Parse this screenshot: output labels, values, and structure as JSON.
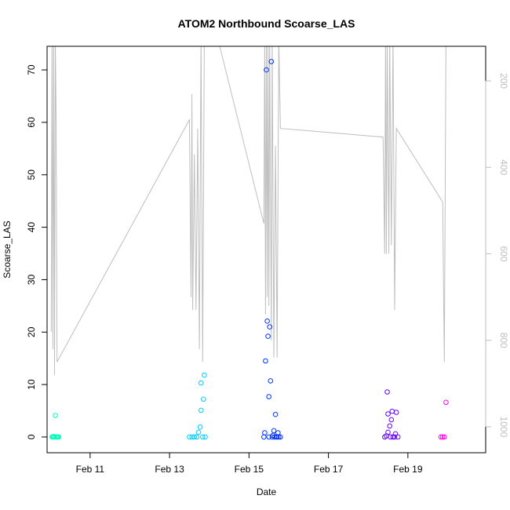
{
  "chart_data": {
    "type": "scatter",
    "title": "ATOM2 Northbound Scoarse_LAS",
    "xlabel": "Date",
    "ylabel": "Scoarse_LAS",
    "xlim": [
      "2024-02-09T22:00",
      "2024-02-20T23:00"
    ],
    "ylim": [
      -3,
      74.5
    ],
    "x_ticks": [
      {
        "date": "2024-02-11",
        "label": "Feb 11"
      },
      {
        "date": "2024-02-13",
        "label": "Feb 13"
      },
      {
        "date": "2024-02-15",
        "label": "Feb 15"
      },
      {
        "date": "2024-02-17",
        "label": "Feb 17"
      },
      {
        "date": "2024-02-19",
        "label": "Feb 19"
      }
    ],
    "y_ticks": [
      0,
      10,
      20,
      30,
      40,
      50,
      60,
      70
    ],
    "secondary_axis": {
      "side": "right",
      "color": "#bebebe",
      "reversed": true,
      "range": [
        1060,
        120
      ],
      "ticks": [
        200,
        400,
        600,
        800,
        1000
      ]
    },
    "points": [
      {
        "t": "2024-02-10T01:00",
        "y": 0.0,
        "color": "#00ffbb"
      },
      {
        "t": "2024-02-10T01:30",
        "y": 0.0,
        "color": "#00ffbb"
      },
      {
        "t": "2024-02-10T02:00",
        "y": 0.1,
        "color": "#00ffbb"
      },
      {
        "t": "2024-02-10T02:30",
        "y": 0.0,
        "color": "#00ffbb"
      },
      {
        "t": "2024-02-10T03:00",
        "y": 4.1,
        "color": "#00ffbb"
      },
      {
        "t": "2024-02-10T03:30",
        "y": 0.0,
        "color": "#00ffbb"
      },
      {
        "t": "2024-02-10T04:00",
        "y": 0.0,
        "color": "#00ffbb"
      },
      {
        "t": "2024-02-10T04:30",
        "y": 0.0,
        "color": "#00ffbb"
      },
      {
        "t": "2024-02-10T05:00",
        "y": 0.0,
        "color": "#00ffbb"
      },
      {
        "t": "2024-02-13T12:00",
        "y": 0.0,
        "color": "#00ccff"
      },
      {
        "t": "2024-02-13T13:30",
        "y": 0.0,
        "color": "#00ccff"
      },
      {
        "t": "2024-02-13T15:00",
        "y": 0.0,
        "color": "#00ccff"
      },
      {
        "t": "2024-02-13T16:30",
        "y": 0.0,
        "color": "#00ccff"
      },
      {
        "t": "2024-02-13T17:30",
        "y": 0.9,
        "color": "#00ccff"
      },
      {
        "t": "2024-02-13T18:30",
        "y": 1.9,
        "color": "#00ccff"
      },
      {
        "t": "2024-02-13T19:00",
        "y": 5.1,
        "color": "#00ccff"
      },
      {
        "t": "2024-02-13T19:00",
        "y": 10.3,
        "color": "#00ccff"
      },
      {
        "t": "2024-02-13T20:00",
        "y": 0.0,
        "color": "#00ccff"
      },
      {
        "t": "2024-02-13T20:30",
        "y": 7.2,
        "color": "#00ccff"
      },
      {
        "t": "2024-02-13T21:00",
        "y": 11.8,
        "color": "#00ccff"
      },
      {
        "t": "2024-02-13T21:30",
        "y": 0.0,
        "color": "#00ccff"
      },
      {
        "t": "2024-02-15T09:00",
        "y": 0.0,
        "color": "#0033ff"
      },
      {
        "t": "2024-02-15T09:30",
        "y": 0.8,
        "color": "#0033ff"
      },
      {
        "t": "2024-02-15T10:00",
        "y": 14.5,
        "color": "#0033ff"
      },
      {
        "t": "2024-02-15T10:30",
        "y": 70.0,
        "color": "#0033ff"
      },
      {
        "t": "2024-02-15T11:00",
        "y": 22.1,
        "color": "#0033ff"
      },
      {
        "t": "2024-02-15T11:30",
        "y": 19.2,
        "color": "#0033ff"
      },
      {
        "t": "2024-02-15T12:00",
        "y": 7.7,
        "color": "#0033ff"
      },
      {
        "t": "2024-02-15T12:00",
        "y": 0.0,
        "color": "#0033ff"
      },
      {
        "t": "2024-02-15T12:30",
        "y": 21.0,
        "color": "#0033ff"
      },
      {
        "t": "2024-02-15T13:00",
        "y": 10.7,
        "color": "#0033ff"
      },
      {
        "t": "2024-02-15T13:30",
        "y": 71.6,
        "color": "#0033ff"
      },
      {
        "t": "2024-02-15T14:00",
        "y": 0.0,
        "color": "#0033ff"
      },
      {
        "t": "2024-02-15T14:30",
        "y": 0.3,
        "color": "#0033ff"
      },
      {
        "t": "2024-02-15T15:00",
        "y": 1.2,
        "color": "#0033ff"
      },
      {
        "t": "2024-02-15T15:30",
        "y": 0.0,
        "color": "#0033ff"
      },
      {
        "t": "2024-02-15T16:00",
        "y": 4.3,
        "color": "#0033ff"
      },
      {
        "t": "2024-02-15T16:30",
        "y": 0.0,
        "color": "#0033ff"
      },
      {
        "t": "2024-02-15T17:00",
        "y": 0.0,
        "color": "#0033ff"
      },
      {
        "t": "2024-02-15T17:30",
        "y": 0.8,
        "color": "#0033ff"
      },
      {
        "t": "2024-02-15T18:00",
        "y": 0.0,
        "color": "#0033ff"
      },
      {
        "t": "2024-02-15T19:00",
        "y": 0.0,
        "color": "#0033ff"
      },
      {
        "t": "2024-02-18T10:00",
        "y": 0.0,
        "color": "#6600ff"
      },
      {
        "t": "2024-02-18T11:00",
        "y": 0.2,
        "color": "#6600ff"
      },
      {
        "t": "2024-02-18T11:30",
        "y": 8.6,
        "color": "#6600ff"
      },
      {
        "t": "2024-02-18T12:00",
        "y": 4.4,
        "color": "#6600ff"
      },
      {
        "t": "2024-02-18T12:00",
        "y": 0.9,
        "color": "#6600ff"
      },
      {
        "t": "2024-02-18T13:00",
        "y": 2.1,
        "color": "#6600ff"
      },
      {
        "t": "2024-02-18T13:30",
        "y": 0.0,
        "color": "#6600ff"
      },
      {
        "t": "2024-02-18T14:00",
        "y": 3.3,
        "color": "#6600ff"
      },
      {
        "t": "2024-02-18T14:30",
        "y": 4.9,
        "color": "#6600ff"
      },
      {
        "t": "2024-02-18T15:00",
        "y": 0.0,
        "color": "#6600ff"
      },
      {
        "t": "2024-02-18T16:00",
        "y": 0.0,
        "color": "#6600ff"
      },
      {
        "t": "2024-02-18T16:30",
        "y": 0.6,
        "color": "#6600ff"
      },
      {
        "t": "2024-02-18T17:00",
        "y": 4.7,
        "color": "#6600ff"
      },
      {
        "t": "2024-02-18T18:00",
        "y": 0.0,
        "color": "#6600ff"
      },
      {
        "t": "2024-02-19T20:00",
        "y": 0.0,
        "color": "#ff00ee"
      },
      {
        "t": "2024-02-19T21:00",
        "y": 0.0,
        "color": "#ff00ee"
      },
      {
        "t": "2024-02-19T22:00",
        "y": 0.0,
        "color": "#ff00ee"
      },
      {
        "t": "2024-02-19T23:00",
        "y": 6.6,
        "color": "#ff00ee"
      }
    ],
    "depth_line": {
      "color": "#bebebe",
      "points": [
        [
          "2024-02-10T00:30",
          780
        ],
        [
          "2024-02-10T01:00",
          100
        ],
        [
          "2024-02-10T01:30",
          820
        ],
        [
          "2024-02-10T02:00",
          100
        ],
        [
          "2024-02-10T02:30",
          880
        ],
        [
          "2024-02-10T03:00",
          100
        ],
        [
          "2024-02-10T03:30",
          300
        ],
        [
          "2024-02-10T04:00",
          850
        ],
        [
          "2024-02-13T12:00",
          290
        ],
        [
          "2024-02-13T13:00",
          700
        ],
        [
          "2024-02-13T13:30",
          230
        ],
        [
          "2024-02-13T14:00",
          730
        ],
        [
          "2024-02-13T15:00",
          370
        ],
        [
          "2024-02-13T16:00",
          730
        ],
        [
          "2024-02-13T17:00",
          310
        ],
        [
          "2024-02-13T18:00",
          820
        ],
        [
          "2024-02-13T19:00",
          100
        ],
        [
          "2024-02-13T20:00",
          850
        ],
        [
          "2024-02-13T21:00",
          100
        ],
        [
          "2024-02-14T05:00",
          100
        ],
        [
          "2024-02-15T09:00",
          530
        ],
        [
          "2024-02-15T09:30",
          100
        ],
        [
          "2024-02-15T10:00",
          740
        ],
        [
          "2024-02-15T10:30",
          100
        ],
        [
          "2024-02-15T11:00",
          700
        ],
        [
          "2024-02-15T11:30",
          100
        ],
        [
          "2024-02-15T12:00",
          720
        ],
        [
          "2024-02-15T12:30",
          100
        ],
        [
          "2024-02-15T13:30",
          800
        ],
        [
          "2024-02-15T14:00",
          100
        ],
        [
          "2024-02-15T15:00",
          840
        ],
        [
          "2024-02-15T16:00",
          350
        ],
        [
          "2024-02-15T17:00",
          840
        ],
        [
          "2024-02-15T18:00",
          100
        ],
        [
          "2024-02-15T19:00",
          310
        ],
        [
          "2024-02-18T09:00",
          330
        ],
        [
          "2024-02-18T10:00",
          600
        ],
        [
          "2024-02-18T10:30",
          100
        ],
        [
          "2024-02-18T11:00",
          600
        ],
        [
          "2024-02-18T11:30",
          100
        ],
        [
          "2024-02-18T12:30",
          600
        ],
        [
          "2024-02-18T13:00",
          100
        ],
        [
          "2024-02-18T14:00",
          580
        ],
        [
          "2024-02-18T15:00",
          100
        ],
        [
          "2024-02-18T16:00",
          730
        ],
        [
          "2024-02-18T17:00",
          310
        ],
        [
          "2024-02-19T21:00",
          480
        ],
        [
          "2024-02-19T22:00",
          850
        ],
        [
          "2024-02-19T23:00",
          100
        ]
      ]
    }
  }
}
